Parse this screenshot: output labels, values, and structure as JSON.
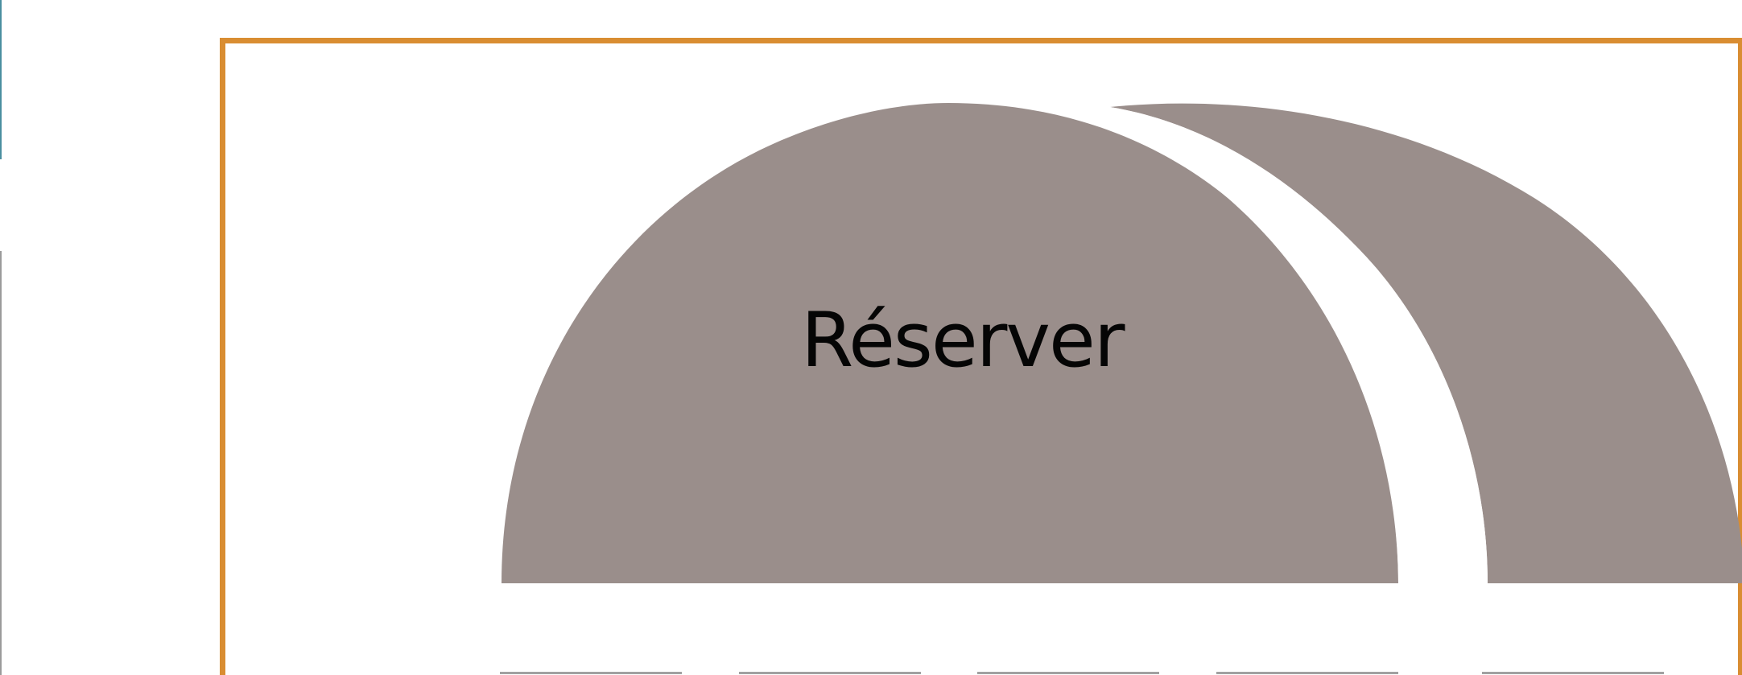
{
  "reservation": {
    "button_label": "Réserver"
  },
  "colors": {
    "frame_border": "#d98d32",
    "shape_fill": "#9a8e8b",
    "background": "#ffffff",
    "text": "#050505"
  },
  "icons": {
    "primary_shape": "double-arch-shape",
    "divider": "white-arc-divider"
  }
}
